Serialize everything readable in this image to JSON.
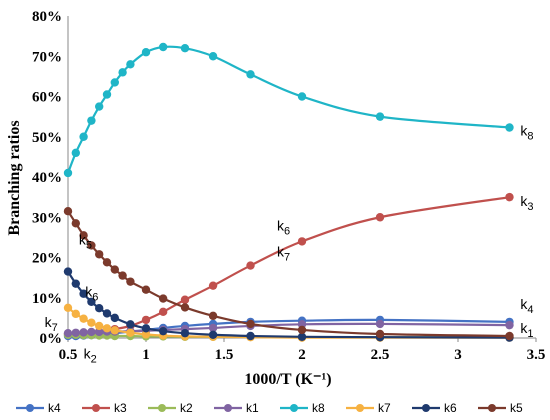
{
  "chart_data": {
    "type": "line",
    "title": "",
    "xlabel": "1000/T (K⁻¹)",
    "ylabel": "Branching ratios",
    "xlim": [
      0.5,
      3.5
    ],
    "ylim": [
      0,
      80
    ],
    "x_ticks": [
      "0.5",
      "1",
      "1.5",
      "2",
      "2.5",
      "3",
      "3.5"
    ],
    "y_ticks": [
      "0%",
      "10%",
      "20%",
      "30%",
      "40%",
      "50%",
      "60%",
      "70%",
      "80%"
    ],
    "grid": false,
    "legend_position": "bottom",
    "series": [
      {
        "name": "k4",
        "color": "#4472C4",
        "x": [
          0.5,
          0.55,
          0.6,
          0.65,
          0.7,
          0.75,
          0.8,
          0.9,
          1.0,
          1.11,
          1.25,
          1.43,
          1.67,
          2.0,
          2.5,
          3.33
        ],
        "y": [
          0.5,
          0.5,
          0.6,
          0.7,
          0.8,
          1.0,
          1.2,
          1.6,
          2.0,
          2.5,
          3.0,
          3.5,
          4.0,
          4.3,
          4.5,
          4.0
        ]
      },
      {
        "name": "k3",
        "color": "#C0504D",
        "x": [
          0.5,
          0.55,
          0.6,
          0.65,
          0.7,
          0.75,
          0.8,
          0.9,
          1.0,
          1.11,
          1.25,
          1.43,
          1.67,
          2.0,
          2.5,
          3.33
        ],
        "y": [
          1.0,
          1.1,
          1.2,
          1.4,
          1.6,
          1.9,
          2.2,
          3.0,
          4.5,
          6.5,
          9.5,
          13.0,
          18.0,
          24.0,
          30.0,
          35.0
        ]
      },
      {
        "name": "k2",
        "color": "#9BBB59",
        "x": [
          0.5,
          0.55,
          0.6,
          0.65,
          0.7,
          0.75,
          0.8,
          0.9,
          1.0,
          1.11,
          1.25,
          1.43,
          1.67,
          2.0,
          2.5,
          3.33
        ],
        "y": [
          0.8,
          0.8,
          0.7,
          0.7,
          0.6,
          0.6,
          0.5,
          0.5,
          0.4,
          0.4,
          0.3,
          0.3,
          0.3,
          0.2,
          0.2,
          0.2
        ]
      },
      {
        "name": "k1",
        "color": "#8064A2",
        "x": [
          0.5,
          0.55,
          0.6,
          0.65,
          0.7,
          0.75,
          0.8,
          0.9,
          1.0,
          1.11,
          1.25,
          1.43,
          1.67,
          2.0,
          2.5,
          3.33
        ],
        "y": [
          1.2,
          1.3,
          1.4,
          1.5,
          1.5,
          1.6,
          1.6,
          1.7,
          1.8,
          2.0,
          2.2,
          2.5,
          3.0,
          3.4,
          3.5,
          3.2
        ]
      },
      {
        "name": "k8",
        "color": "#1FB5C7",
        "x": [
          0.5,
          0.55,
          0.6,
          0.65,
          0.7,
          0.75,
          0.8,
          0.85,
          0.9,
          1.0,
          1.11,
          1.25,
          1.43,
          1.67,
          2.0,
          2.5,
          3.33
        ],
        "y": [
          41.0,
          46.0,
          50.0,
          54.0,
          57.5,
          60.5,
          63.5,
          66.0,
          68.0,
          71.0,
          72.3,
          72.0,
          70.0,
          65.5,
          60.0,
          55.0,
          52.3
        ]
      },
      {
        "name": "k7",
        "color": "#F6B141",
        "x": [
          0.5,
          0.55,
          0.6,
          0.65,
          0.7,
          0.75,
          0.8,
          0.9,
          1.0,
          1.11,
          1.25,
          1.43,
          1.67,
          2.0,
          2.5,
          3.33
        ],
        "y": [
          7.5,
          6.0,
          4.8,
          3.8,
          3.0,
          2.4,
          1.9,
          1.3,
          0.9,
          0.6,
          0.4,
          0.3,
          0.2,
          0.1,
          0.1,
          0.1
        ]
      },
      {
        "name": "k6",
        "color": "#1F3A6E",
        "x": [
          0.5,
          0.55,
          0.6,
          0.65,
          0.7,
          0.75,
          0.8,
          0.9,
          1.0,
          1.11,
          1.25,
          1.43,
          1.67,
          2.0,
          2.5,
          3.33
        ],
        "y": [
          16.5,
          13.5,
          11.0,
          9.0,
          7.4,
          6.1,
          5.0,
          3.4,
          2.4,
          1.7,
          1.2,
          0.8,
          0.5,
          0.3,
          0.2,
          0.1
        ]
      },
      {
        "name": "k5",
        "color": "#7B3A2C",
        "x": [
          0.5,
          0.55,
          0.6,
          0.65,
          0.7,
          0.75,
          0.8,
          0.85,
          0.9,
          1.0,
          1.11,
          1.25,
          1.43,
          1.67,
          2.0,
          2.5,
          3.33
        ],
        "y": [
          31.5,
          28.5,
          25.5,
          23.0,
          20.8,
          18.8,
          17.0,
          15.5,
          14.0,
          12.0,
          9.8,
          7.6,
          5.5,
          3.5,
          2.0,
          1.0,
          0.5
        ]
      }
    ],
    "annotations": [
      {
        "id": "k8",
        "base": "k",
        "sub": "8",
        "x": 3.4,
        "y": 51.5
      },
      {
        "id": "k3",
        "base": "k",
        "sub": "3",
        "x": 3.4,
        "y": 34.0
      },
      {
        "id": "k4",
        "base": "k",
        "sub": "4",
        "x": 3.4,
        "y": 8.5
      },
      {
        "id": "k1",
        "base": "k",
        "sub": "1",
        "x": 3.4,
        "y": 2.5
      },
      {
        "id": "k6-mid",
        "base": "k",
        "sub": "6",
        "x": 1.84,
        "y": 28.0
      },
      {
        "id": "k7-mid",
        "base": "k",
        "sub": "7",
        "x": 1.84,
        "y": 21.5
      },
      {
        "id": "k5-left",
        "base": "k",
        "sub": "5",
        "x": 0.57,
        "y": 24.5
      },
      {
        "id": "k6-left",
        "base": "k",
        "sub": "6",
        "x": 0.61,
        "y": 11.5
      },
      {
        "id": "k7-left",
        "base": "k",
        "sub": "7",
        "x": 0.35,
        "y": 4.0
      },
      {
        "id": "k2-left",
        "base": "k",
        "sub": "2",
        "x": 0.6,
        "y": -3.8
      }
    ]
  }
}
